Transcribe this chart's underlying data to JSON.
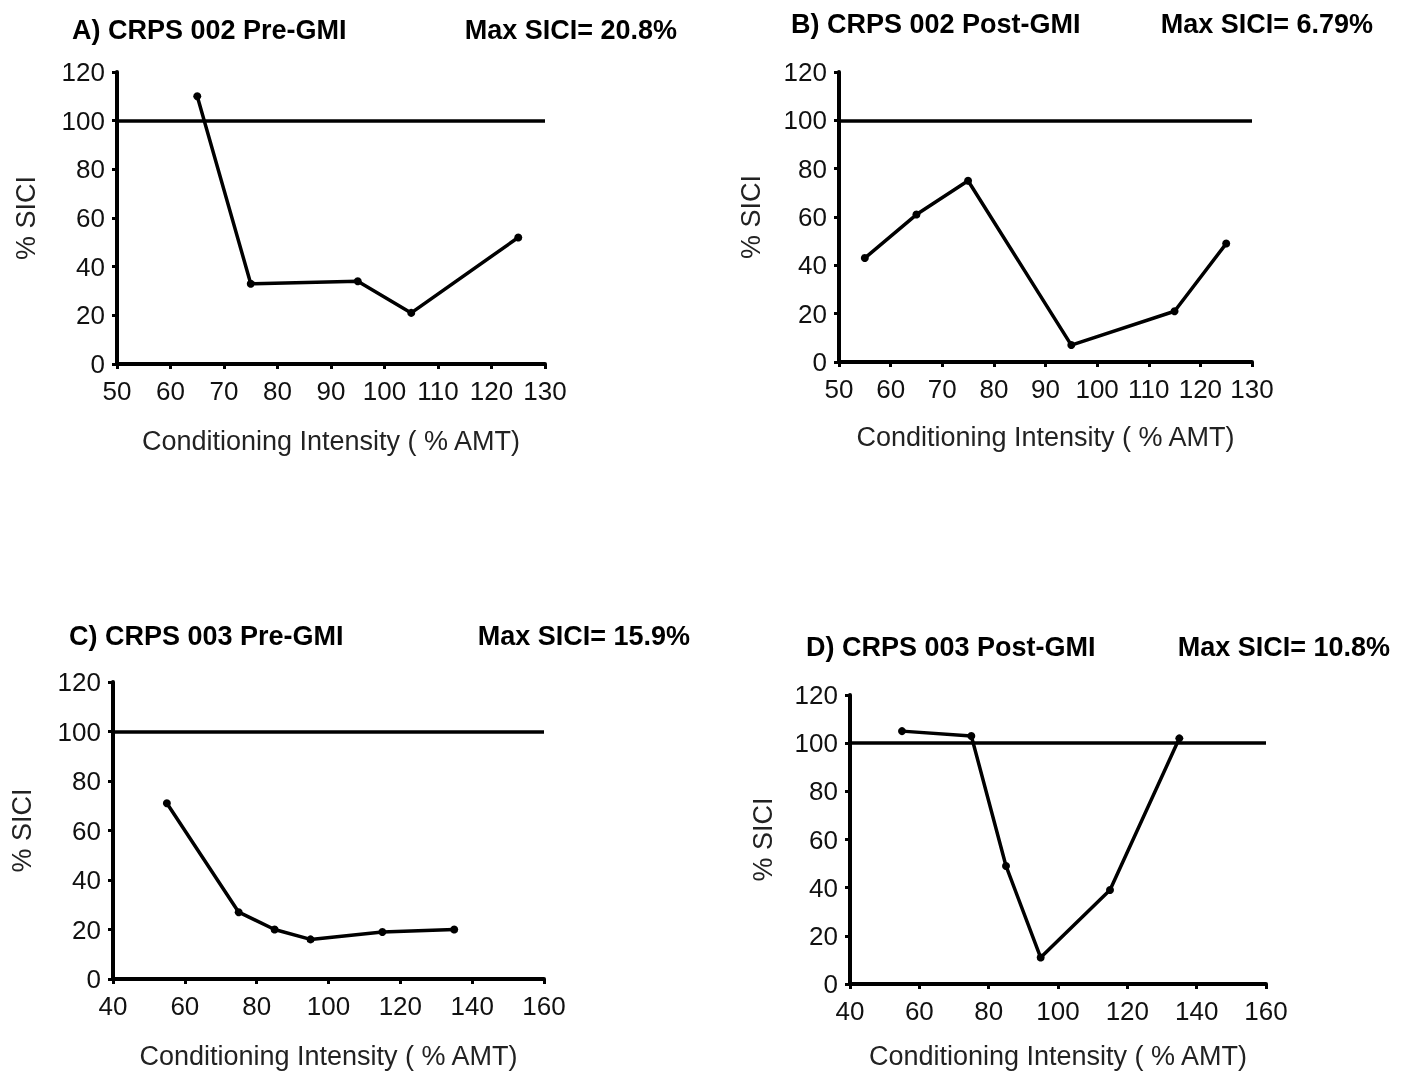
{
  "chart_data": [
    {
      "type": "line",
      "title": "A) CRPS 002 Pre-GMI",
      "annotations": [
        "Max SICI= 20.8%"
      ],
      "xlabel": "Conditioning Intensity ( % AMT)",
      "ylabel": "% SICI",
      "x": [
        65,
        75,
        95,
        105,
        125
      ],
      "series": [
        {
          "color": "#000000",
          "values": [
            110,
            33,
            34,
            21,
            52
          ]
        }
      ],
      "xlim": [
        50,
        130
      ],
      "xticks": [
        50,
        60,
        70,
        80,
        90,
        100,
        110,
        120,
        130
      ],
      "ylim": [
        0,
        120
      ],
      "yticks": [
        0,
        20,
        40,
        60,
        80,
        100,
        120
      ],
      "ref_lines": [
        {
          "axis": "y",
          "value": 100,
          "color": "#000000"
        }
      ],
      "grid": false,
      "marker": "circle",
      "line_style": "solid"
    },
    {
      "type": "line",
      "title": "B) CRPS 002 Post-GMI",
      "annotations": [
        "Max SICI= 6.79%"
      ],
      "xlabel": "Conditioning Intensity ( % AMT)",
      "ylabel": "% SICI",
      "x": [
        55,
        65,
        75,
        95,
        115,
        125
      ],
      "series": [
        {
          "color": "#000000",
          "values": [
            43,
            61,
            75,
            7,
            21,
            49
          ]
        }
      ],
      "xlim": [
        50,
        130
      ],
      "xticks": [
        50,
        60,
        70,
        80,
        90,
        100,
        110,
        120,
        130
      ],
      "ylim": [
        0,
        120
      ],
      "yticks": [
        0,
        20,
        40,
        60,
        80,
        100,
        120
      ],
      "ref_lines": [
        {
          "axis": "y",
          "value": 100,
          "color": "#000000"
        }
      ],
      "grid": false,
      "marker": "circle",
      "line_style": "solid"
    },
    {
      "type": "line",
      "title": "C) CRPS 003 Pre-GMI",
      "annotations": [
        "Max SICI= 15.9%"
      ],
      "xlabel": "Conditioning Intensity ( % AMT)",
      "ylabel": "% SICI",
      "x": [
        55,
        75,
        85,
        95,
        115,
        135
      ],
      "series": [
        {
          "color": "#000000",
          "values": [
            71,
            27,
            20,
            16,
            19,
            20
          ]
        }
      ],
      "xlim": [
        40,
        160
      ],
      "xticks": [
        40,
        60,
        80,
        100,
        120,
        140,
        160
      ],
      "ylim": [
        0,
        120
      ],
      "yticks": [
        0,
        20,
        40,
        60,
        80,
        100,
        120
      ],
      "ref_lines": [
        {
          "axis": "y",
          "value": 100,
          "color": "#000000"
        }
      ],
      "grid": false,
      "marker": "circle",
      "line_style": "solid"
    },
    {
      "type": "line",
      "title": "D) CRPS 003 Post-GMI",
      "annotations": [
        "Max SICI= 10.8%"
      ],
      "xlabel": "Conditioning Intensity ( % AMT)",
      "ylabel": "% SICI",
      "x": [
        55,
        75,
        85,
        95,
        115,
        135
      ],
      "series": [
        {
          "color": "#000000",
          "values": [
            105,
            103,
            49,
            11,
            39,
            102
          ]
        }
      ],
      "xlim": [
        40,
        160
      ],
      "xticks": [
        40,
        60,
        80,
        100,
        120,
        140,
        160
      ],
      "ylim": [
        0,
        120
      ],
      "yticks": [
        0,
        20,
        40,
        60,
        80,
        100,
        120
      ],
      "ref_lines": [
        {
          "axis": "y",
          "value": 100,
          "color": "#000000"
        }
      ],
      "grid": false,
      "marker": "circle",
      "line_style": "solid"
    }
  ]
}
